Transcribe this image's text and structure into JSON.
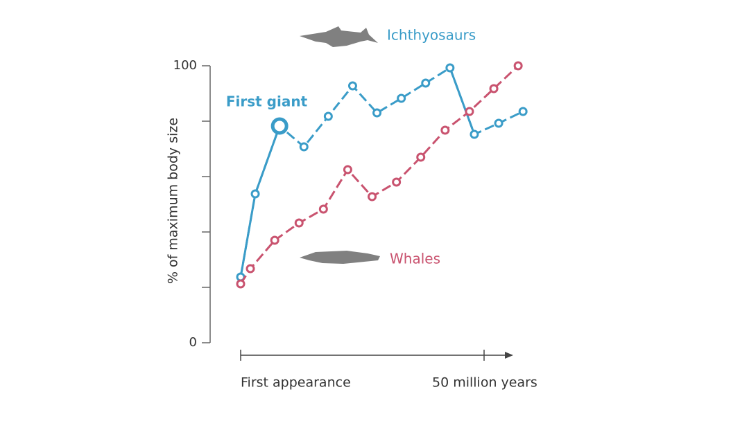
{
  "chart_data": {
    "type": "line",
    "ylabel": "% of maximum body size",
    "annotation": "First giant",
    "xlim": [
      0,
      56
    ],
    "xticks": [
      {
        "value": 0,
        "label": "First appearance"
      },
      {
        "value": 50,
        "label": "50 million years"
      }
    ],
    "ylim": [
      0,
      100
    ],
    "yticks": [
      0,
      {
        "value": 20,
        "label": null
      },
      {
        "value": 40,
        "label": null
      },
      {
        "value": 60,
        "label": null
      },
      {
        "value": 80,
        "label": null
      },
      100
    ],
    "series": [
      {
        "name": "Ichthyosaurs",
        "color": "#3a9cc8",
        "x": [
          0,
          3,
          8,
          13,
          18,
          23,
          28,
          33,
          38,
          43,
          48,
          53,
          58
        ],
        "values": [
          23.75,
          53.75,
          78.25,
          70.75,
          81.75,
          92.75,
          83,
          88.25,
          93.75,
          99.25,
          75.25,
          79.25,
          83.5
        ]
      },
      {
        "name": "Whales",
        "color": "#c9536f",
        "x": [
          0,
          2,
          7,
          12,
          17,
          22,
          27,
          32,
          37,
          42,
          47,
          52,
          57
        ],
        "values": [
          21.25,
          26.75,
          37,
          43.25,
          48.25,
          62.5,
          52.75,
          58,
          67,
          76.75,
          83.5,
          91.75,
          100
        ]
      }
    ]
  }
}
